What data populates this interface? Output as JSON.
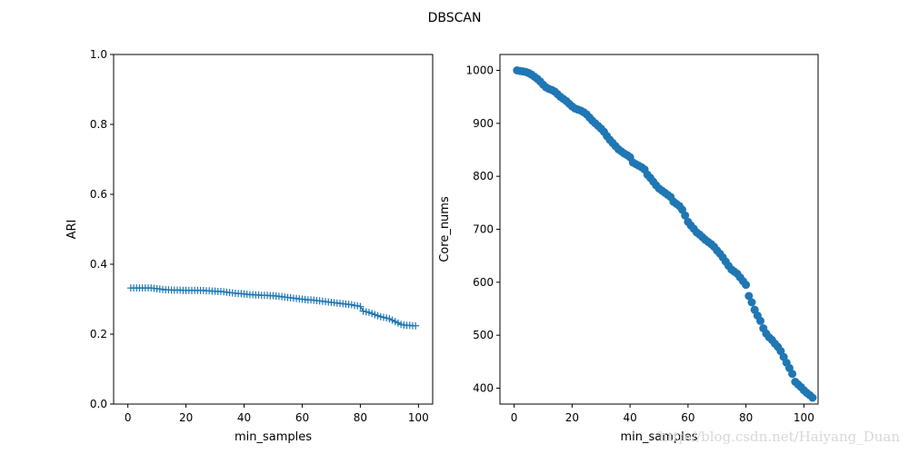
{
  "figure": {
    "title": "DBSCAN",
    "watermark": "http://blog.csdn.net/Haiyang_Duan"
  },
  "chart_data": [
    {
      "type": "line",
      "marker": "+",
      "color": "#1f77b4",
      "title": "",
      "xlabel": "min_samples",
      "ylabel": "ARI",
      "xlim": [
        -4.9,
        104.9
      ],
      "ylim": [
        0.0,
        1.0
      ],
      "xticks": [
        "0",
        "20",
        "40",
        "60",
        "80",
        "100"
      ],
      "xtick_values": [
        0,
        20,
        40,
        60,
        80,
        100
      ],
      "yticks": [
        "0.0",
        "0.2",
        "0.4",
        "0.6",
        "0.8",
        "1.0"
      ],
      "ytick_values": [
        0.0,
        0.2,
        0.4,
        0.6,
        0.8,
        1.0
      ],
      "series": [
        {
          "x_start": 1,
          "x_step": 1,
          "values": [
            0.332,
            0.332,
            0.332,
            0.332,
            0.332,
            0.332,
            0.332,
            0.332,
            0.331,
            0.33,
            0.329,
            0.328,
            0.327,
            0.327,
            0.326,
            0.326,
            0.326,
            0.326,
            0.325,
            0.325,
            0.325,
            0.325,
            0.325,
            0.325,
            0.325,
            0.325,
            0.324,
            0.324,
            0.323,
            0.323,
            0.322,
            0.322,
            0.321,
            0.32,
            0.319,
            0.318,
            0.317,
            0.316,
            0.316,
            0.315,
            0.314,
            0.313,
            0.313,
            0.312,
            0.312,
            0.311,
            0.311,
            0.311,
            0.31,
            0.31,
            0.309,
            0.308,
            0.307,
            0.306,
            0.305,
            0.304,
            0.303,
            0.302,
            0.301,
            0.3,
            0.299,
            0.298,
            0.298,
            0.297,
            0.296,
            0.295,
            0.294,
            0.293,
            0.292,
            0.291,
            0.29,
            0.289,
            0.288,
            0.287,
            0.286,
            0.285,
            0.284,
            0.282,
            0.281,
            0.279,
            0.266,
            0.264,
            0.262,
            0.259,
            0.256,
            0.253,
            0.25,
            0.248,
            0.246,
            0.244,
            0.24,
            0.236,
            0.232,
            0.228,
            0.226,
            0.225,
            0.225,
            0.224,
            0.224
          ]
        }
      ]
    },
    {
      "type": "scatter",
      "marker": "o",
      "color": "#1f77b4",
      "title": "",
      "xlabel": "min_samples",
      "ylabel": "Core_nums",
      "xlim": [
        -4.9,
        104.9
      ],
      "ylim": [
        370,
        1030
      ],
      "xticks": [
        "0",
        "20",
        "40",
        "60",
        "80",
        "100"
      ],
      "xtick_values": [
        0,
        20,
        40,
        60,
        80,
        100
      ],
      "yticks": [
        "400",
        "500",
        "600",
        "700",
        "800",
        "900",
        "1000"
      ],
      "ytick_values": [
        400,
        500,
        600,
        700,
        800,
        900,
        1000
      ],
      "series": [
        {
          "x_start": 1,
          "x_step": 1,
          "values": [
            1000,
            999,
            998,
            997,
            995,
            992,
            988,
            984,
            979,
            973,
            968,
            965,
            963,
            960,
            955,
            950,
            946,
            942,
            937,
            932,
            928,
            926,
            924,
            921,
            917,
            911,
            905,
            900,
            895,
            890,
            884,
            876,
            869,
            863,
            857,
            851,
            847,
            843,
            840,
            836,
            826,
            823,
            820,
            817,
            813,
            803,
            797,
            790,
            783,
            777,
            773,
            769,
            765,
            761,
            752,
            748,
            744,
            737,
            726,
            714,
            707,
            701,
            694,
            690,
            685,
            680,
            676,
            672,
            667,
            660,
            654,
            647,
            639,
            631,
            624,
            620,
            616,
            609,
            602,
            595,
            574,
            562,
            548,
            537,
            527,
            513,
            503,
            496,
            491,
            484,
            478,
            470,
            459,
            448,
            438,
            427,
            412,
            407,
            402,
            396,
            391,
            387,
            382
          ]
        }
      ]
    }
  ]
}
